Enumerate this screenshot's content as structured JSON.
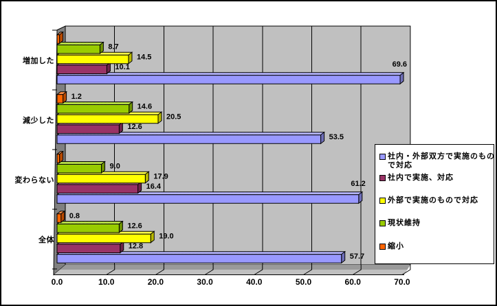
{
  "chart_data": {
    "type": "bar",
    "orientation": "horizontal-3d",
    "categories": [
      "増加した",
      "減少した",
      "変わらない",
      "全体"
    ],
    "series": [
      {
        "name": "社内・外部双方で実施のもので対応",
        "color": "#9999FF",
        "values": [
          69.6,
          53.5,
          61.2,
          57.7
        ],
        "labels": [
          "69.6",
          "53.5",
          "61.2",
          "57.7"
        ]
      },
      {
        "name": "社内で実施、対応",
        "color": "#993366",
        "values": [
          10.1,
          12.6,
          16.4,
          12.8
        ],
        "labels": [
          "10.1",
          "12.6",
          "16.4",
          "12.8"
        ]
      },
      {
        "name": "外部で実施のもので対応",
        "color": "#FFFF00",
        "values": [
          14.5,
          20.5,
          17.9,
          19.0
        ],
        "labels": [
          "14.5",
          "20.5",
          "17.9",
          "19.0"
        ]
      },
      {
        "name": "現状維持",
        "color": "#99CC00",
        "values": [
          8.7,
          14.6,
          9.0,
          12.6
        ],
        "labels": [
          "8.7",
          "14.6",
          "9.0",
          "12.6"
        ]
      },
      {
        "name": "縮小",
        "color": "#FF6600",
        "values": [
          0.5,
          1.2,
          0.5,
          0.8
        ],
        "labels": [
          "",
          "1.2",
          "",
          "0.8"
        ]
      }
    ],
    "x_axis": {
      "min": 0.0,
      "max": 70.0,
      "step": 10.0,
      "tick_labels": [
        "0.0",
        "10.0",
        "20.0",
        "30.0",
        "40.0",
        "50.0",
        "60.0",
        "70.0"
      ]
    },
    "legend_position": "right",
    "gridlines": true,
    "colors": {
      "wall": "#C0C0C0",
      "side_wall": "#808080",
      "floor": "#9A9A9A",
      "floor_edge": "#C0C0C0",
      "grid": "#000000",
      "text": "#000000",
      "background": "#FFFFFF",
      "border": "#000000"
    }
  }
}
